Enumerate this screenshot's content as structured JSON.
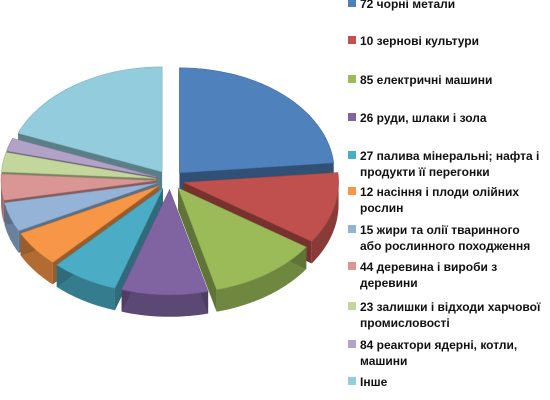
{
  "chart_data": {
    "type": "pie",
    "style": "3d-exploded",
    "legend_position": "right",
    "legend_entries": [
      "72 чорні метали",
      "10 зернові культури",
      "85 електричні машини",
      "26 руди, шлаки і зола",
      "27 палива мінеральні; нафта і продукти її перегонки",
      "12 насіння і плоди олійних рослин",
      "15 жири та олії тваринного або рослинного походження",
      "44 деревина і вироби з деревини",
      "23 залишки і відходи харчової промисловості",
      "84 реактори ядерні, котли, машини",
      "Інше"
    ],
    "legend_lines": [
      [
        "72 чорні метали"
      ],
      [
        "10 зернові культури"
      ],
      [
        "85 електричні машини"
      ],
      [
        "26 руди, шлаки і зола"
      ],
      [
        "27 палива мінеральні; нафта і",
        "продукти її перегонки"
      ],
      [
        "12 насіння і плоди олійних",
        "рослин"
      ],
      [
        "15 жири та олії тваринного",
        "або рослинного походження"
      ],
      [
        "44 деревина і вироби з",
        "деревини"
      ],
      [
        "23 залишки і відходи харчової",
        "промисловості"
      ],
      [
        "84 реактори ядерні, котли,",
        "машини"
      ],
      [
        "Інше"
      ]
    ],
    "slices_percent": [
      23.5,
      11.0,
      11.5,
      9.0,
      7.0,
      5.5,
      4.5,
      4.0,
      3.0,
      2.0,
      19.0
    ],
    "colors": [
      "#4F81BD",
      "#C0504D",
      "#9BBB59",
      "#8064A2",
      "#4BACC6",
      "#F79646",
      "#95B3D7",
      "#D99694",
      "#C3D69B",
      "#B2A2C7",
      "#93CDDD"
    ]
  }
}
